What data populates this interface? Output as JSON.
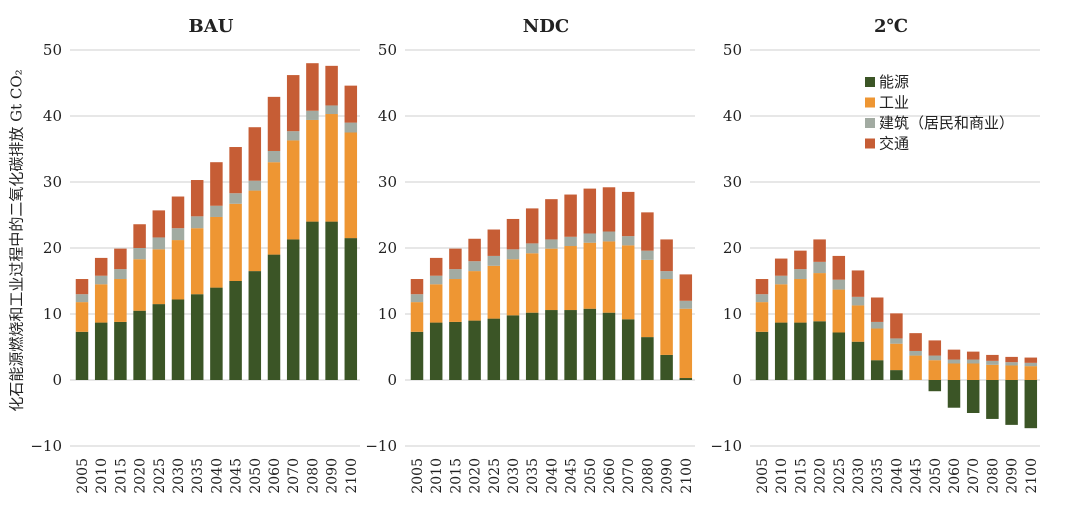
{
  "y_axis_label": "化石能源燃烧和工业过程中的二氧化碳排放 Gt CO₂",
  "chart_data": [
    {
      "type": "bar",
      "stacked": true,
      "title": "BAU",
      "categories": [
        "2005",
        "2010",
        "2015",
        "2020",
        "2025",
        "2030",
        "2035",
        "2040",
        "2045",
        "2050",
        "2060",
        "2070",
        "2080",
        "2090",
        "2100"
      ],
      "ylim": [
        -10,
        50
      ],
      "yticks": [
        -10,
        0,
        10,
        20,
        30,
        40,
        50
      ],
      "series": [
        {
          "name": "能源",
          "values": [
            7.3,
            8.7,
            8.8,
            10.5,
            11.5,
            12.2,
            13.0,
            14.0,
            15.0,
            16.5,
            19.0,
            21.3,
            24.0,
            24.0,
            21.5
          ]
        },
        {
          "name": "工业",
          "values": [
            4.5,
            5.8,
            6.5,
            7.8,
            8.3,
            9.0,
            10.0,
            10.7,
            11.7,
            12.2,
            14.0,
            15.0,
            15.4,
            16.3,
            16.0
          ]
        },
        {
          "name": "建筑（居民和商业）",
          "values": [
            1.2,
            1.3,
            1.5,
            1.7,
            1.8,
            1.8,
            1.8,
            1.7,
            1.6,
            1.5,
            1.7,
            1.4,
            1.4,
            1.3,
            1.5
          ]
        },
        {
          "name": "交通",
          "values": [
            2.3,
            2.7,
            3.1,
            3.6,
            4.1,
            4.8,
            5.5,
            6.6,
            7.0,
            8.1,
            8.2,
            8.5,
            7.2,
            6.0,
            5.6
          ]
        }
      ]
    },
    {
      "type": "bar",
      "stacked": true,
      "title": "NDC",
      "categories": [
        "2005",
        "2010",
        "2015",
        "2020",
        "2025",
        "2030",
        "2035",
        "2040",
        "2045",
        "2050",
        "2060",
        "2070",
        "2080",
        "2090",
        "2100"
      ],
      "ylim": [
        -10,
        50
      ],
      "yticks": [
        -10,
        0,
        10,
        20,
        30,
        40,
        50
      ],
      "series": [
        {
          "name": "能源",
          "values": [
            7.3,
            8.7,
            8.8,
            9.0,
            9.3,
            9.8,
            10.2,
            10.6,
            10.6,
            10.8,
            10.2,
            9.2,
            6.5,
            3.8,
            0.3
          ]
        },
        {
          "name": "工业",
          "values": [
            4.5,
            5.8,
            6.5,
            7.5,
            8.0,
            8.5,
            9.0,
            9.3,
            9.7,
            10.0,
            10.8,
            11.2,
            11.7,
            11.5,
            10.5
          ]
        },
        {
          "name": "建筑（居民和商业）",
          "values": [
            1.2,
            1.3,
            1.5,
            1.5,
            1.5,
            1.5,
            1.5,
            1.4,
            1.4,
            1.4,
            1.5,
            1.4,
            1.4,
            1.2,
            1.2
          ]
        },
        {
          "name": "交通",
          "values": [
            2.3,
            2.7,
            3.1,
            3.4,
            4.0,
            4.6,
            5.3,
            6.1,
            6.4,
            6.8,
            6.7,
            6.7,
            5.8,
            4.8,
            4.0
          ]
        }
      ]
    },
    {
      "type": "bar",
      "stacked": true,
      "title": "2℃",
      "categories": [
        "2005",
        "2010",
        "2015",
        "2020",
        "2025",
        "2030",
        "2035",
        "2040",
        "2045",
        "2050",
        "2060",
        "2070",
        "2080",
        "2090",
        "2100"
      ],
      "ylim": [
        -10,
        50
      ],
      "yticks": [
        -10,
        0,
        10,
        20,
        30,
        40,
        50
      ],
      "legend_position": "top-right",
      "series": [
        {
          "name": "能源",
          "values": [
            7.3,
            8.7,
            8.7,
            8.9,
            7.2,
            5.8,
            3.0,
            1.5,
            0.0,
            -1.7,
            -4.2,
            -5.0,
            -5.9,
            -6.8,
            -7.3
          ]
        },
        {
          "name": "工业",
          "values": [
            4.5,
            5.8,
            6.6,
            7.3,
            6.5,
            5.5,
            4.8,
            4.0,
            3.7,
            3.0,
            2.5,
            2.5,
            2.3,
            2.2,
            2.1
          ]
        },
        {
          "name": "建筑（居民和商业）",
          "values": [
            1.2,
            1.3,
            1.5,
            1.7,
            1.5,
            1.3,
            1.0,
            0.8,
            0.7,
            0.7,
            0.6,
            0.6,
            0.6,
            0.5,
            0.5
          ]
        },
        {
          "name": "交通",
          "values": [
            2.3,
            2.6,
            2.8,
            3.4,
            3.6,
            4.0,
            3.7,
            3.8,
            2.7,
            2.3,
            1.5,
            1.2,
            0.9,
            0.8,
            0.8
          ]
        }
      ]
    }
  ],
  "colors": {
    "能源": "#3b5526",
    "工业": "#ee9633",
    "建筑（居民和商业）": "#a2aba2",
    "交通": "#c65d35",
    "grid": "#cfcfcf",
    "text": "#222222"
  }
}
